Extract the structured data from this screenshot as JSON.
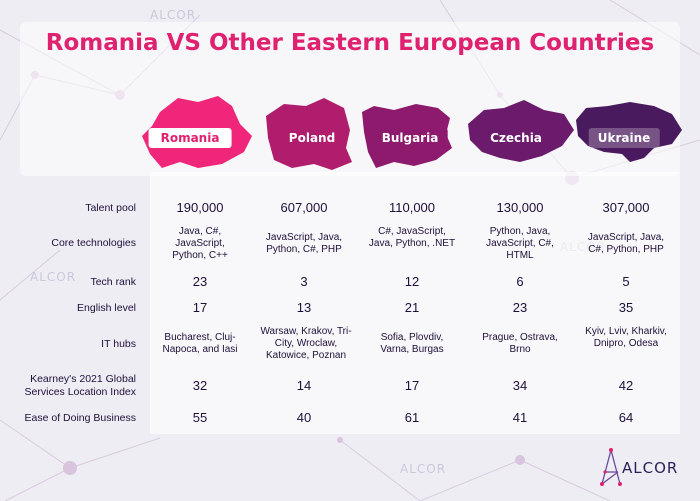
{
  "title": "Romania VS Other Eastern European Countries",
  "colors": {
    "accent": "#e0216f",
    "text": "#1e1038"
  },
  "watermark_text": "ALCOR",
  "countries": [
    {
      "name": "Romania",
      "color": "#f0267a"
    },
    {
      "name": "Poland",
      "color": "#b01d6c"
    },
    {
      "name": "Bulgaria",
      "color": "#8d1a6c"
    },
    {
      "name": "Czechia",
      "color": "#6b1a6c"
    },
    {
      "name": "Ukraine",
      "color": "#4a1a5e"
    }
  ],
  "rows": [
    {
      "label": "Talent pool",
      "values": [
        "190,000",
        "607,000",
        "110,000",
        "130,000",
        "307,000"
      ]
    },
    {
      "label": "Core technologies",
      "values": [
        "Java, C#, JavaScript, Python, C++",
        "JavaScript, Java, Python, C#, PHP",
        "C#, JavaScript, Java, Python, .NET",
        "Python, Java, JavaScript, C#, HTML",
        "JavaScript, Java, C#, Python, PHP"
      ]
    },
    {
      "label": "Tech rank",
      "values": [
        "23",
        "3",
        "12",
        "6",
        "5"
      ]
    },
    {
      "label": "English level",
      "values": [
        "17",
        "13",
        "21",
        "23",
        "35"
      ]
    },
    {
      "label": "IT hubs",
      "values": [
        "Bucharest, Cluj-Napoca, and Iasi",
        "Warsaw, Krakov, Tri-City, Wroclaw, Katowice, Poznan",
        "Sofia, Plovdiv, Varna, Burgas",
        "Prague, Ostrava, Brno",
        "Kyiv, Lviv, Kharkiv, Dnipro, Odesa"
      ]
    },
    {
      "label": "Kearney's 2021 Global Services Location Index",
      "values": [
        "32",
        "14",
        "17",
        "34",
        "42"
      ]
    },
    {
      "label": "Ease of Doing Business",
      "values": [
        "55",
        "40",
        "61",
        "41",
        "64"
      ]
    }
  ],
  "logo": {
    "text": "ALCOR",
    "icon": "alcor-logo-icon"
  }
}
